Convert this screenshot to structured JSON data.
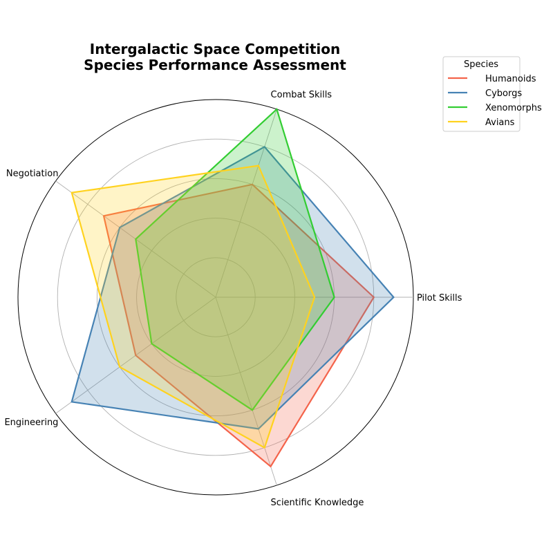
{
  "chart_data": {
    "type": "radar",
    "title_lines": [
      "Intergalactic Space Competition",
      "Species Performance Assessment"
    ],
    "axes": [
      "Pilot Skills",
      "Combat Skills",
      "Negotiation",
      "Engineering",
      "Scientific Knowledge"
    ],
    "rlim": [
      0,
      10
    ],
    "grid": true,
    "legend": {
      "title": "Species",
      "placement": "top-right outside"
    },
    "series": [
      {
        "name": "Humanoids",
        "color": "#F4634A",
        "values": [
          8.0,
          6.0,
          7.0,
          5.0,
          9.0
        ]
      },
      {
        "name": "Cyborgs",
        "color": "#4682B4",
        "values": [
          9.0,
          8.0,
          6.0,
          9.0,
          7.0
        ]
      },
      {
        "name": "Xenomorphs",
        "color": "#32CD32",
        "values": [
          6.0,
          10.0,
          5.0,
          4.0,
          6.0
        ]
      },
      {
        "name": "Avians",
        "color": "#FFD21E",
        "values": [
          5.0,
          7.0,
          9.0,
          6.0,
          8.0
        ]
      }
    ]
  }
}
